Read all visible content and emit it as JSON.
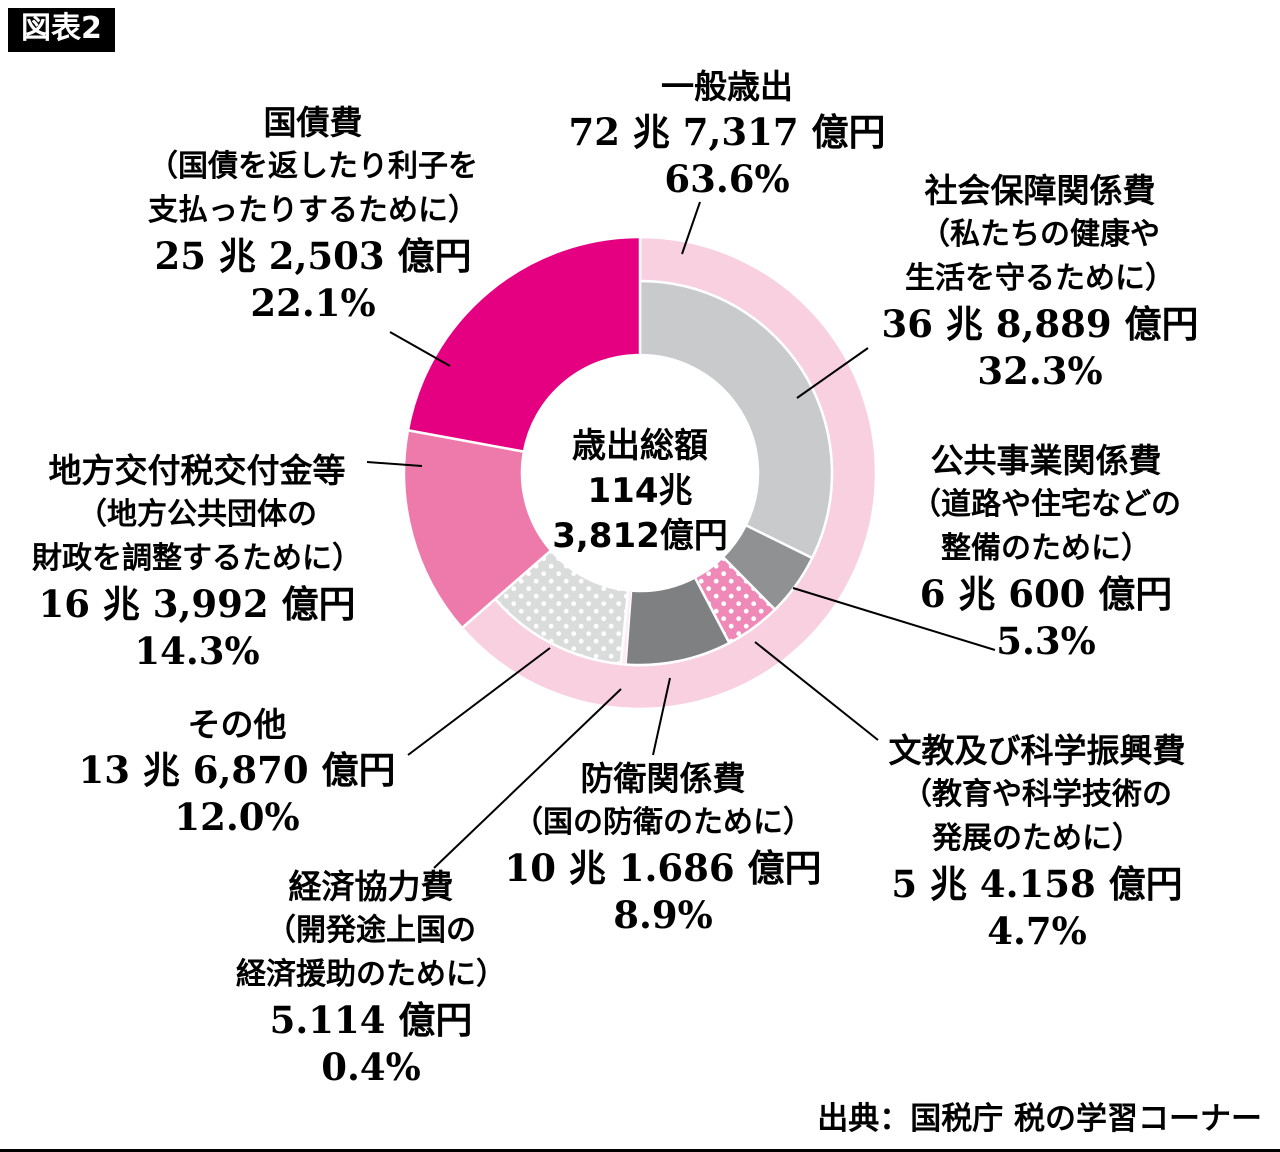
{
  "figure_tag": "図表2",
  "source": "出典：国税庁 税の学習コーナー",
  "center": {
    "l1": "歳出総額",
    "l2": "114兆",
    "l3": "3,812億円"
  },
  "chart_data": {
    "type": "donut",
    "title": "歳出総額 114兆3,812億円",
    "center_total_label": "歳出総額",
    "center_total_value": "114兆3,812億円",
    "unit": "%",
    "colors": {
      "ippan": "#f8d0e0",
      "shakai": "#c9cacb",
      "kokyo": "#909193",
      "bunkyo": "#ef8ab8",
      "bouei": "#7f8082",
      "keizai": "#fdeef5",
      "sonota": "#dadbdb",
      "chihou": "#ee7aab",
      "kokusai": "#e50082"
    },
    "segments": [
      {
        "id": "ippan",
        "name": "一般歳出",
        "value_text": "72兆7,317億円",
        "pct": 63.6,
        "color": "#f8d0e0",
        "ring": "outer",
        "start_pct": 0
      },
      {
        "id": "shakai",
        "name": "社会保障関係費",
        "value_text": "36兆8,889億円",
        "pct": 32.3,
        "color": "#c9cacb",
        "ring": "inner",
        "start_pct": 0
      },
      {
        "id": "kokyo",
        "name": "公共事業関係費",
        "value_text": "6兆600億円",
        "pct": 5.3,
        "color": "#909193",
        "ring": "inner",
        "start_pct": 32.3
      },
      {
        "id": "bunkyo",
        "name": "文教及び科学振興費",
        "value_text": "5兆4.158億円",
        "pct": 4.7,
        "color": "#ef8ab8",
        "dotted": true,
        "ring": "inner",
        "start_pct": 37.6
      },
      {
        "id": "bouei",
        "name": "防衛関係費",
        "value_text": "10兆1.686億円",
        "pct": 8.9,
        "color": "#7f8082",
        "ring": "inner",
        "start_pct": 42.3
      },
      {
        "id": "keizai",
        "name": "経済協力費",
        "value_text": "5.114億円",
        "pct": 0.4,
        "color": "#fdeef5",
        "ring": "inner",
        "start_pct": 51.2
      },
      {
        "id": "sonota",
        "name": "その他",
        "value_text": "13兆6,870億円",
        "pct": 12.0,
        "color": "#dadbdb",
        "dotted": true,
        "ring": "inner",
        "start_pct": 51.6
      },
      {
        "id": "chihou",
        "name": "地方交付税交付金等",
        "value_text": "16兆3,992億円",
        "pct": 14.3,
        "color": "#ee7aab",
        "ring": "full",
        "start_pct": 63.6
      },
      {
        "id": "kokusai",
        "name": "国債費",
        "value_text": "25兆2,503億円",
        "pct": 22.1,
        "color": "#e50082",
        "ring": "full",
        "start_pct": 77.9
      }
    ]
  },
  "labels": {
    "ippan": {
      "title": "一般歳出",
      "value": "72 兆 7,317 億円",
      "pct": "63.6%"
    },
    "shakai": {
      "title": "社会保障関係費",
      "desc1": "（私たちの健康や",
      "desc2": "生活を守るために）",
      "value": "36 兆 8,889 億円",
      "pct": "32.3%"
    },
    "kokyo": {
      "title": "公共事業関係費",
      "desc1": "（道路や住宅などの",
      "desc2": "整備のために）",
      "value": "6 兆 600 億円",
      "pct": "5.3%"
    },
    "kokusai": {
      "title": "国債費",
      "desc1": "（国債を返したり利子を",
      "desc2": "支払ったりするために）",
      "value": "25 兆 2,503 億円",
      "pct": "22.1%"
    },
    "chihou": {
      "title": "地方交付税交付金等",
      "desc1": "（地方公共団体の",
      "desc2": "財政を調整するために）",
      "value": "16 兆 3,992 億円",
      "pct": "14.3%"
    },
    "sonota": {
      "title": "その他",
      "value": "13 兆 6,870 億円",
      "pct": "12.0%"
    },
    "keizai": {
      "title": "経済協力費",
      "desc1": "（開発途上国の",
      "desc2": "経済援助のために）",
      "value": "5.114 億円",
      "pct": "0.4%"
    },
    "bouei": {
      "title": "防衛関係費",
      "desc1": "（国の防衛のために）",
      "value": "10 兆 1.686 億円",
      "pct": "8.9%"
    },
    "bunkyo": {
      "title": "文教及び科学振興費",
      "desc1": "（教育や科学技術の",
      "desc2": "発展のために）",
      "value": "5 兆 4.158 億円",
      "pct": "4.7%"
    }
  }
}
